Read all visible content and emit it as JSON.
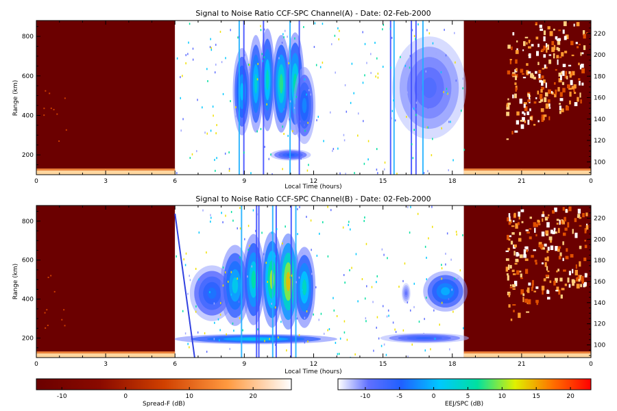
{
  "chart_data": [
    {
      "type": "heatmap",
      "title": "Signal to Noise Ratio CCF-SPC Channel(A) - Date: 02-Feb-2000",
      "xlabel": "Local Time (hours)",
      "ylabel_left": "Range (km)",
      "x_ticks": [
        "0",
        "3",
        "6",
        "9",
        "12",
        "15",
        "18",
        "21",
        "0"
      ],
      "y_left_ticks": [
        200,
        400,
        600,
        800
      ],
      "y_left_range": [
        100,
        880
      ],
      "y_right_ticks": [
        100,
        120,
        140,
        160,
        180,
        200,
        220
      ],
      "y_right_range": [
        88,
        232
      ],
      "x_range_hours": [
        0,
        24
      ],
      "segments": [
        {
          "name": "Spread-F",
          "from_hour": 0,
          "to_hour": 6
        },
        {
          "name": "EEJ/SPC",
          "from_hour": 6,
          "to_hour": 18.5
        },
        {
          "name": "Spread-F",
          "from_hour": 18.5,
          "to_hour": 24
        }
      ],
      "blobs": [
        {
          "t": 8.9,
          "range_km": 520,
          "sig_t": 0.25,
          "sig_r": 170,
          "snr_db": -1
        },
        {
          "t": 9.5,
          "range_km": 560,
          "sig_t": 0.2,
          "sig_r": 190,
          "snr_db": 1
        },
        {
          "t": 10.0,
          "range_km": 580,
          "sig_t": 0.2,
          "sig_r": 200,
          "snr_db": 2
        },
        {
          "t": 10.6,
          "range_km": 560,
          "sig_t": 0.25,
          "sig_r": 190,
          "snr_db": 4
        },
        {
          "t": 11.2,
          "range_km": 560,
          "sig_t": 0.25,
          "sig_r": 200,
          "snr_db": 3
        },
        {
          "t": 11.6,
          "range_km": 450,
          "sig_t": 0.3,
          "sig_r": 150,
          "snr_db": -4
        },
        {
          "t": 11.0,
          "range_km": 200,
          "sig_t": 0.55,
          "sig_r": 22,
          "snr_db": -6
        },
        {
          "t": 17.0,
          "range_km": 540,
          "sig_t": 1.0,
          "sig_r": 200,
          "snr_db": -9
        }
      ],
      "vertical_streaks_hours": [
        8.75,
        8.95,
        9.8,
        10.95,
        11.35,
        15.3,
        15.45,
        16.2,
        16.4,
        16.7
      ]
    },
    {
      "type": "heatmap",
      "title": "Signal to Noise Ratio CCF-SPC Channel(B) - Date: 02-Feb-2000",
      "xlabel": "Local Time (hours)",
      "ylabel_left": "Range (km)",
      "x_ticks": [
        "0",
        "3",
        "6",
        "9",
        "12",
        "15",
        "18",
        "21",
        "0"
      ],
      "y_left_ticks": [
        200,
        400,
        600,
        800
      ],
      "y_left_range": [
        100,
        880
      ],
      "y_right_ticks": [
        100,
        120,
        140,
        160,
        180,
        200,
        220
      ],
      "y_right_range": [
        88,
        232
      ],
      "x_range_hours": [
        0,
        24
      ],
      "segments": [
        {
          "name": "Spread-F",
          "from_hour": 0,
          "to_hour": 6
        },
        {
          "name": "EEJ/SPC",
          "from_hour": 6,
          "to_hour": 18.5
        },
        {
          "name": "Spread-F",
          "from_hour": 18.5,
          "to_hour": 24
        }
      ],
      "blobs": [
        {
          "t": 7.6,
          "range_km": 430,
          "sig_t": 0.6,
          "sig_r": 110,
          "snr_db": -5
        },
        {
          "t": 8.6,
          "range_km": 470,
          "sig_t": 0.4,
          "sig_r": 160,
          "snr_db": 0
        },
        {
          "t": 9.4,
          "range_km": 500,
          "sig_t": 0.3,
          "sig_r": 180,
          "snr_db": 3
        },
        {
          "t": 10.2,
          "range_km": 500,
          "sig_t": 0.3,
          "sig_r": 190,
          "snr_db": 7
        },
        {
          "t": 10.9,
          "range_km": 490,
          "sig_t": 0.3,
          "sig_r": 190,
          "snr_db": 11
        },
        {
          "t": 11.6,
          "range_km": 460,
          "sig_t": 0.3,
          "sig_r": 160,
          "snr_db": 2
        },
        {
          "t": 9.5,
          "range_km": 195,
          "sig_t": 2.2,
          "sig_r": 20,
          "snr_db": 0
        },
        {
          "t": 16.0,
          "range_km": 430,
          "sig_t": 0.12,
          "sig_r": 40,
          "snr_db": -10
        },
        {
          "t": 17.7,
          "range_km": 440,
          "sig_t": 0.6,
          "sig_r": 80,
          "snr_db": -2
        },
        {
          "t": 16.8,
          "range_km": 200,
          "sig_t": 1.2,
          "sig_r": 20,
          "snr_db": -7
        }
      ],
      "vertical_streaks_hours": [
        8.85,
        9.5,
        9.6,
        10.2,
        10.35,
        11.0,
        11.2
      ],
      "diagonal_line_hours": [
        6.0,
        6.85
      ]
    }
  ],
  "colorbars": [
    {
      "label": "Spread-F (dB)",
      "ticks": [
        "-10",
        "0",
        "10",
        "20"
      ],
      "range": [
        -14,
        26
      ],
      "colors": [
        "#6b0000",
        "#c03000",
        "#ff7a00",
        "#ffd080",
        "#ffffff"
      ]
    },
    {
      "label": "EEJ/SPC (dB)",
      "ticks": [
        "-10",
        "-5",
        "0",
        "5",
        "10",
        "15",
        "20"
      ],
      "range": [
        -14,
        23
      ],
      "colors": [
        "#ffffff",
        "#4050ff",
        "#00c0ff",
        "#00e080",
        "#f0f000",
        "#ff6000",
        "#ff0000"
      ]
    }
  ]
}
